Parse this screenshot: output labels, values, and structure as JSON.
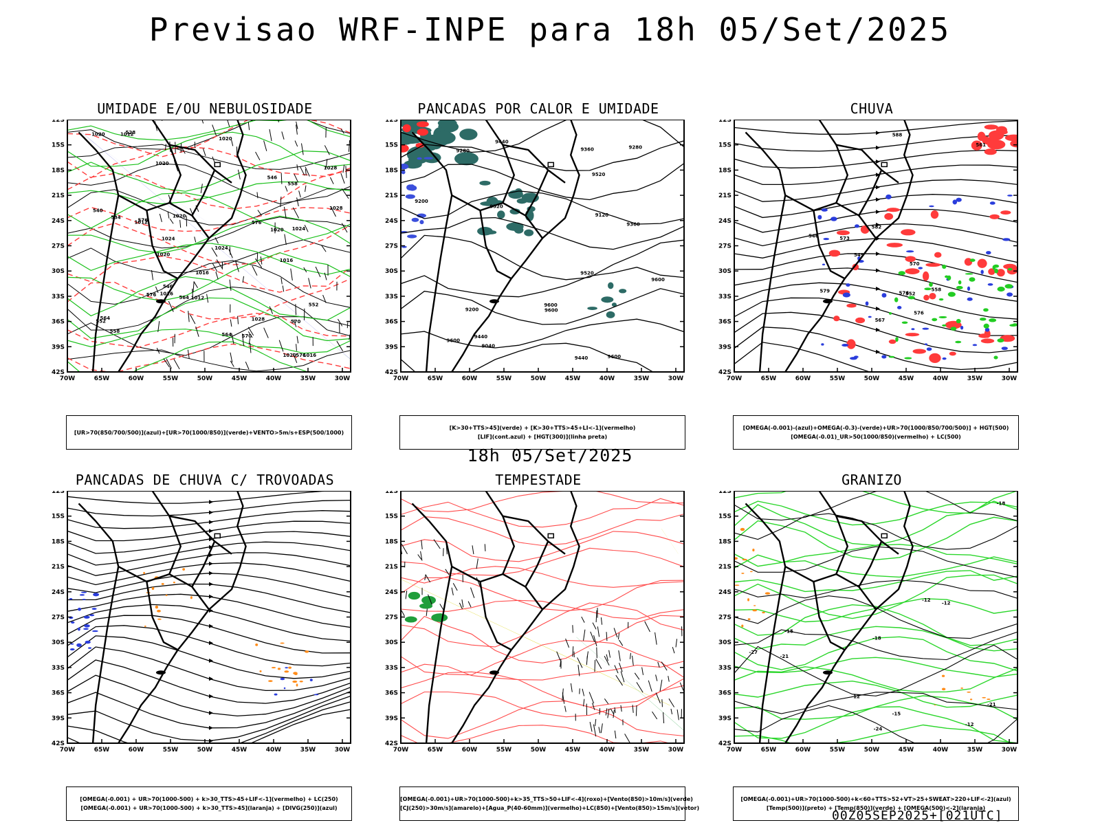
{
  "title": "Previsao WRF-INPE  para 18h 05/Set/2025",
  "mid_time": "18h 05/Set/2025",
  "footer_id": "00Z05SEP2025+[021UTC]",
  "lat_labels": [
    "12S",
    "15S",
    "18S",
    "21S",
    "24S",
    "27S",
    "30S",
    "33S",
    "36S",
    "39S",
    "42S"
  ],
  "lon_labels": [
    "70W",
    "65W",
    "60W",
    "55W",
    "50W",
    "45W",
    "40W",
    "35W",
    "30W"
  ],
  "panels": [
    {
      "title": "UMIDADE E/OU NEBULOSIDADE",
      "legend": [
        "[UR>70(850/700/500)](azul)+[UR>70(1000/850)](verde)+VENTO>5m/s+ESP(500/1000)"
      ],
      "contour_labels": [
        "1016",
        "1012",
        "1012",
        "1016",
        "1016",
        "1020",
        "1012",
        "1020",
        "1016",
        "1020",
        "1024",
        "1020",
        "1020",
        "1020",
        "1024",
        "1028",
        "1024",
        "1028",
        "1028",
        "1020",
        "576",
        "576",
        "570",
        "576",
        "570",
        "576",
        "564",
        "564",
        "558",
        "552",
        "546",
        "564",
        "558",
        "552",
        "546",
        "540",
        "534",
        "528"
      ]
    },
    {
      "title": "PANCADAS POR CALOR E UMIDADE",
      "legend": [
        "[K>30+TTS>45](verde) + [K>30+TTS>45+LI<-1](vermelho)",
        "[LIF](cont.azul) + [HGT(300)](linha preta)"
      ],
      "contour_labels": [
        "9600",
        "9600",
        "9600",
        "9600",
        "9600",
        "9520",
        "9440",
        "9520",
        "9440",
        "9360",
        "9520",
        "9280",
        "9200",
        "9120",
        "9040",
        "9280",
        "9200",
        "9440",
        "9360"
      ]
    },
    {
      "title": "CHUVA",
      "legend": [
        "[OMEGA(-0.001)-(azul)+OMEGA(-0.3)-(verde)+UR>70(1000/850/700/500)] + HGT(500)",
        "[OMEGA(-0.01)_UR>50(1000/850)(vermelho) + LC(500)"
      ],
      "contour_labels": [
        "588",
        "582",
        "576",
        "576",
        "573",
        "570",
        "567",
        "561",
        "558",
        "552",
        "549",
        "546",
        "579"
      ]
    },
    {
      "title": "PANCADAS DE CHUVA C/ TROVOADAS",
      "legend": [
        "[OMEGA(-0.001) + UR>70(1000-500) + k>30_TTS>45+LIF<-1](vermelho) + LC(250)",
        "[OMEGA(-0.001) + UR>70(1000-500) + k>30_TTS>45](laranja) + [DIVG(250)](azul)"
      ],
      "contour_labels": []
    },
    {
      "title": "TEMPESTADE",
      "legend": [
        "[OMEGA(-0.001)+UR>70(1000-500)+k>35_TTS>50+LIF<-4](roxo)+[Vento(850)>10m/s](verde)",
        "[CJ(250)>30m/s](amarelo)+[Agua_P(40-60mm)](vermelho)+LC(850)+[Vento(850)>15m/s](vetor)"
      ],
      "contour_labels": []
    },
    {
      "title": "GRANIZO",
      "legend": [
        "[OMEGA(-0.001)+UR>70(1000-500)+k<60+TTS>52+VT>25+SWEAT>220+LIF<-2](azul)",
        "[Temp(500)](preto) + [Temp(850)](verde) + [OMEGA(500)<-2](laranja)"
      ],
      "contour_labels": [
        "-12",
        "-12",
        "-15",
        "-12",
        "-12",
        "-18",
        "-15",
        "-18",
        "-21",
        "-24",
        "-27",
        "-21"
      ]
    }
  ]
}
